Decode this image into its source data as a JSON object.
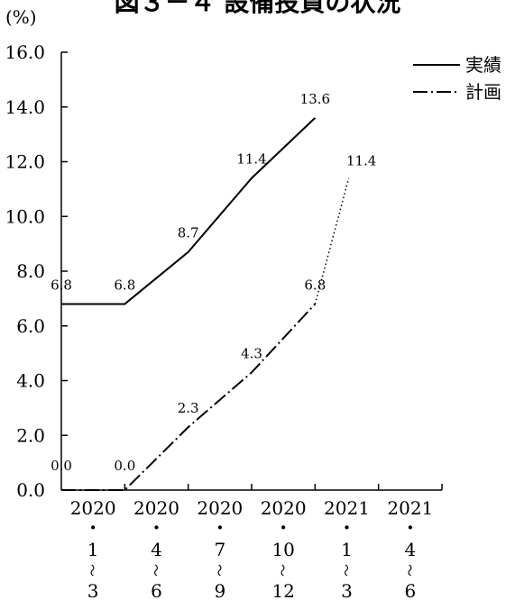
{
  "chart_data": {
    "type": "line",
    "title": "図３－４ 設備投資の状況",
    "ylabel": "(%)",
    "xlabel": "",
    "ylim": [
      0,
      16
    ],
    "yticks": [
      "0.0",
      "2.0",
      "4.0",
      "6.0",
      "8.0",
      "10.0",
      "12.0",
      "14.0",
      "16.0"
    ],
    "categories": [
      [
        "2020",
        "・",
        "1",
        "〜",
        "3"
      ],
      [
        "2020",
        "・",
        "4",
        "〜",
        "6"
      ],
      [
        "2020",
        "・",
        "7",
        "〜",
        "9"
      ],
      [
        "2020",
        "・",
        "10",
        "〜",
        "12"
      ],
      [
        "2021",
        "・",
        "1",
        "〜",
        "3"
      ],
      [
        "2021",
        "・",
        "4",
        "〜",
        "6"
      ]
    ],
    "grid": false,
    "legend_position": "top-right",
    "series": [
      {
        "name": "実績",
        "style": "solid",
        "values": [
          6.8,
          6.8,
          8.7,
          11.4,
          13.6,
          null
        ],
        "labels": [
          "6.8",
          "6.8",
          "8.7",
          "11.4",
          "13.6",
          ""
        ]
      },
      {
        "name": "計画",
        "style": "dash-dot",
        "values": [
          0.0,
          0.0,
          2.3,
          4.3,
          6.8,
          11.4
        ],
        "labels": [
          "0.0",
          "0.0",
          "2.3",
          "4.3",
          "6.8",
          "11.4"
        ],
        "projected_from_index": 4
      }
    ],
    "colors": {
      "line": "#000000"
    }
  }
}
